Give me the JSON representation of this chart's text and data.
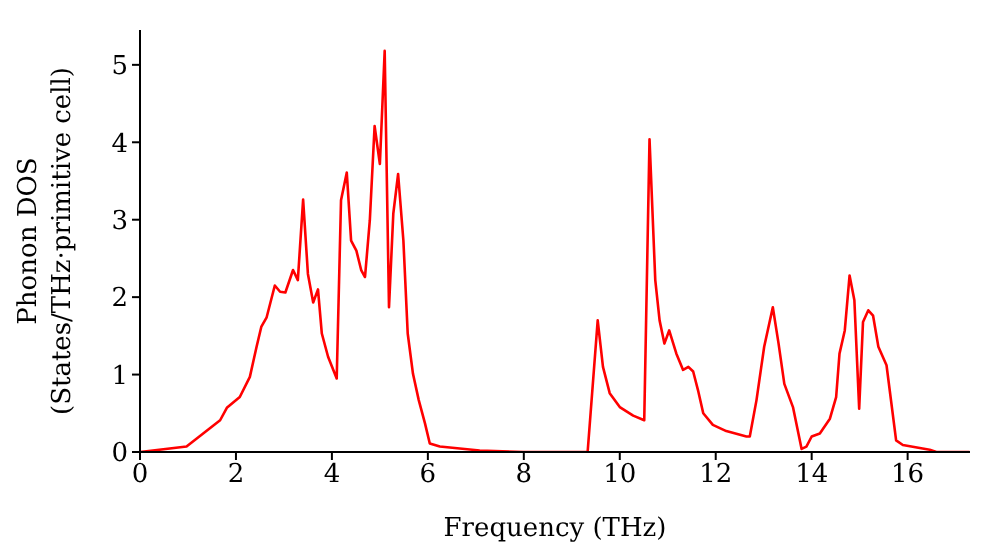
{
  "chart_data": {
    "type": "line",
    "xlabel": "Frequency (THz)",
    "ylabel": "Phonon DOS\n(States/THz·primitive cell)",
    "xlim": [
      0,
      17.3
    ],
    "ylim": [
      0,
      5.45
    ],
    "xticks": [
      0,
      2,
      4,
      6,
      8,
      10,
      12,
      14,
      16
    ],
    "yticks": [
      0,
      1,
      2,
      3,
      4,
      5
    ],
    "grid": false,
    "legend": false,
    "marker": "none",
    "line_style": "solid",
    "x": [
      0,
      0.97,
      1.67,
      1.81,
      2.08,
      2.29,
      2.43,
      2.53,
      2.64,
      2.81,
      2.92,
      3.03,
      3.19,
      3.29,
      3.4,
      3.5,
      3.61,
      3.71,
      3.79,
      3.92,
      4.1,
      4.19,
      4.31,
      4.4,
      4.51,
      4.61,
      4.69,
      4.79,
      4.89,
      5.0,
      5.1,
      5.19,
      5.28,
      5.38,
      5.49,
      5.58,
      5.69,
      5.81,
      5.94,
      6.04,
      6.25,
      7.08,
      7.99,
      9.33,
      9.54,
      9.65,
      9.79,
      10.0,
      10.28,
      10.51,
      10.62,
      10.74,
      10.83,
      10.93,
      11.03,
      11.18,
      11.32,
      11.43,
      11.53,
      11.63,
      11.74,
      11.94,
      12.22,
      12.64,
      12.71,
      12.85,
      13.01,
      13.19,
      13.31,
      13.43,
      13.61,
      13.79,
      13.89,
      14.0,
      14.17,
      14.38,
      14.51,
      14.58,
      14.69,
      14.79,
      14.89,
      14.99,
      15.07,
      15.18,
      15.28,
      15.39,
      15.56,
      15.76,
      15.9,
      16.46,
      16.6,
      17.29
    ],
    "series": [
      {
        "color": "#ff0000",
        "values": [
          0,
          0.07,
          0.41,
          0.57,
          0.71,
          0.97,
          1.36,
          1.62,
          1.74,
          2.15,
          2.07,
          2.06,
          2.35,
          2.22,
          3.26,
          2.3,
          1.93,
          2.1,
          1.53,
          1.23,
          0.95,
          3.25,
          3.61,
          2.73,
          2.6,
          2.35,
          2.26,
          2.99,
          4.21,
          3.72,
          5.18,
          1.87,
          3.08,
          3.59,
          2.73,
          1.53,
          1.01,
          0.67,
          0.37,
          0.11,
          0.07,
          0.02,
          0,
          0,
          1.7,
          1.1,
          0.76,
          0.58,
          0.47,
          0.41,
          4.04,
          2.22,
          1.7,
          1.4,
          1.57,
          1.27,
          1.06,
          1.1,
          1.04,
          0.8,
          0.5,
          0.35,
          0.27,
          0.2,
          0.2,
          0.67,
          1.36,
          1.87,
          1.4,
          0.88,
          0.58,
          0.04,
          0.07,
          0.2,
          0.24,
          0.43,
          0.71,
          1.27,
          1.57,
          2.28,
          1.96,
          0.56,
          1.68,
          1.83,
          1.76,
          1.36,
          1.12,
          0.15,
          0.09,
          0.03,
          0,
          0
        ]
      }
    ]
  }
}
